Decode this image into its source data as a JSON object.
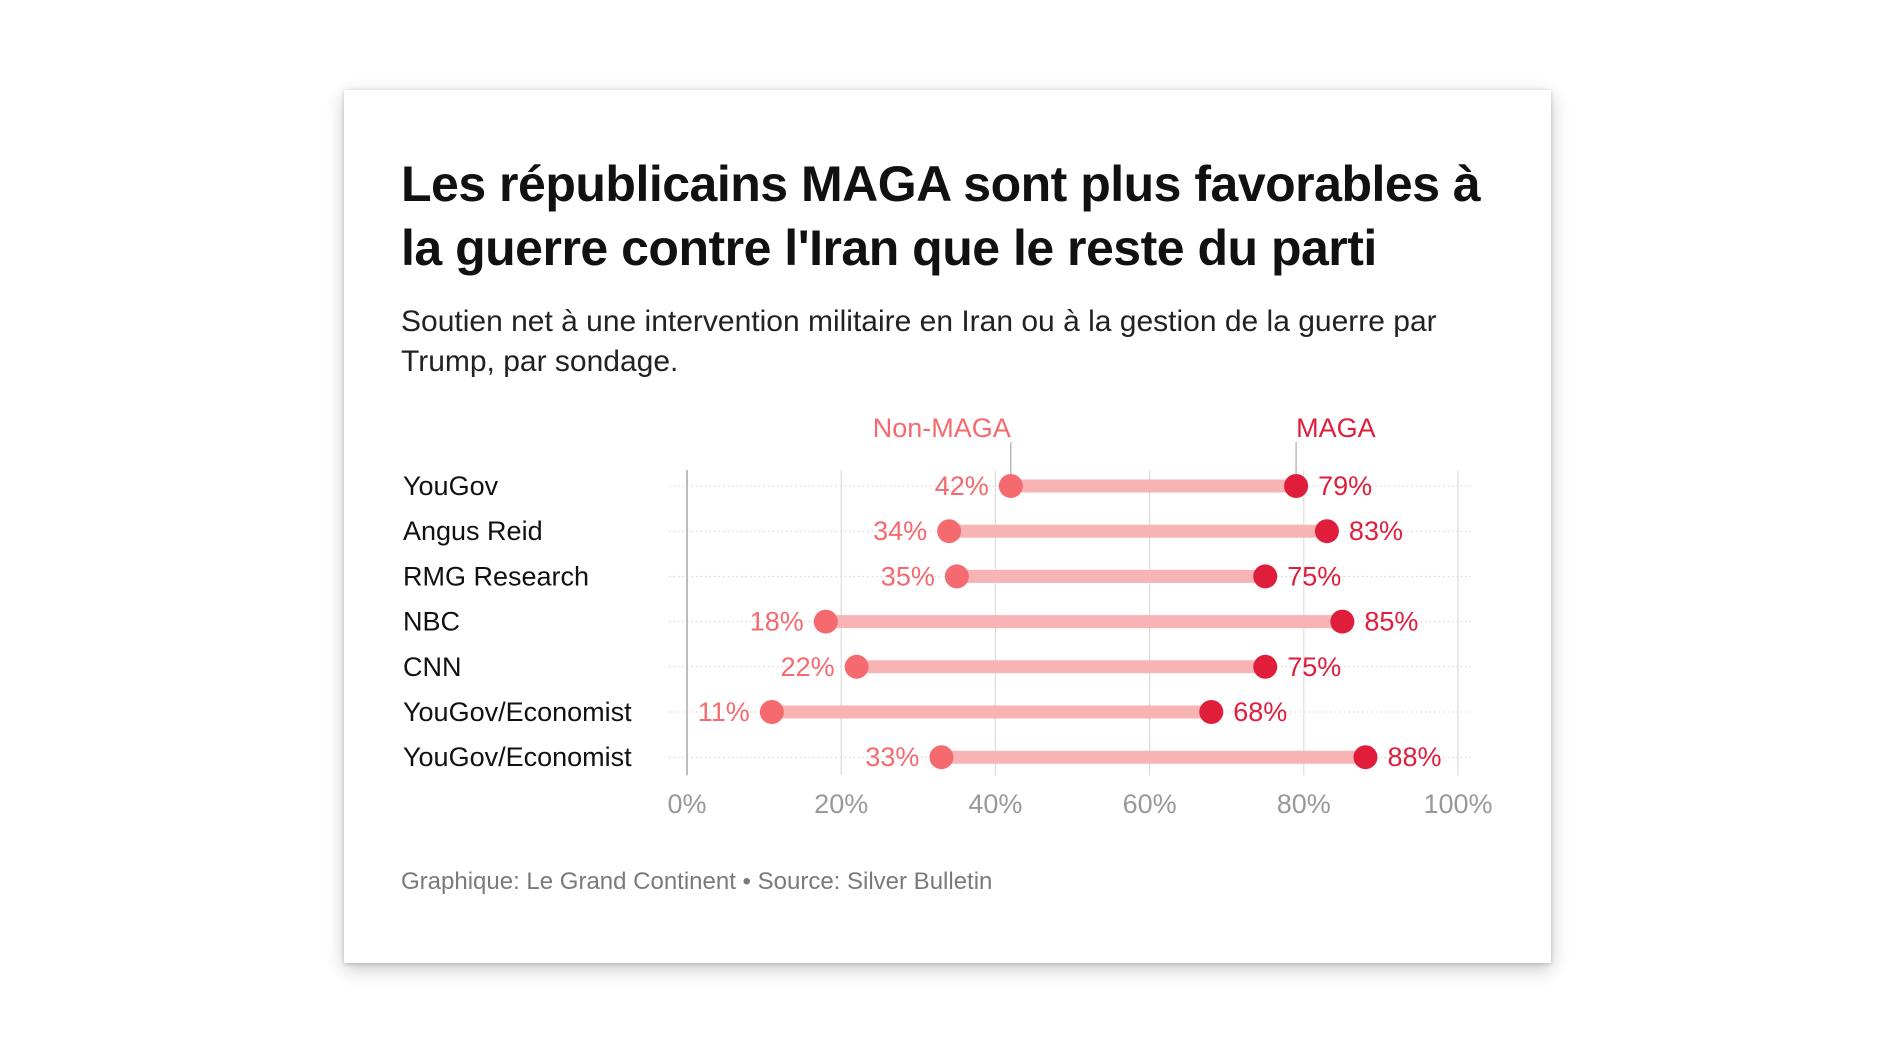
{
  "title": "Les républicains MAGA sont plus favorables à la guerre contre l'Iran que le reste du parti",
  "subtitle": "Soutien net à une intervention militaire en Iran ou à la gestion de la guerre par Trump, par sondage.",
  "credit": "Graphique: Le Grand Continent • Source: Silver Bulletin",
  "colors": {
    "non_maga": "#f56a6f",
    "maga": "#e01e3c",
    "bar": "#f8b3b5",
    "axis_text": "#999999",
    "grid": "#dddddd"
  },
  "chart_data": {
    "type": "dumbbell",
    "title": "Les républicains MAGA sont plus favorables à la guerre contre l'Iran que le reste du parti",
    "subtitle": "Soutien net à une intervention militaire en Iran ou à la gestion de la guerre par Trump, par sondage.",
    "categories": [
      "YouGov",
      "Angus Reid",
      "RMG Research",
      "NBC",
      "CNN",
      "YouGov/Economist",
      "YouGov/Economist"
    ],
    "series": [
      {
        "name": "Non-MAGA",
        "values": [
          42,
          34,
          35,
          18,
          22,
          11,
          33
        ]
      },
      {
        "name": "MAGA",
        "values": [
          79,
          83,
          75,
          85,
          75,
          68,
          88
        ]
      }
    ],
    "value_suffix": "%",
    "xlim": [
      0,
      100
    ],
    "x_ticks": [
      0,
      20,
      40,
      60,
      80,
      100
    ],
    "x_tick_labels": [
      "0%",
      "20%",
      "40%",
      "60%",
      "80%",
      "100%"
    ],
    "grid": true,
    "legend": "labels above first row"
  }
}
